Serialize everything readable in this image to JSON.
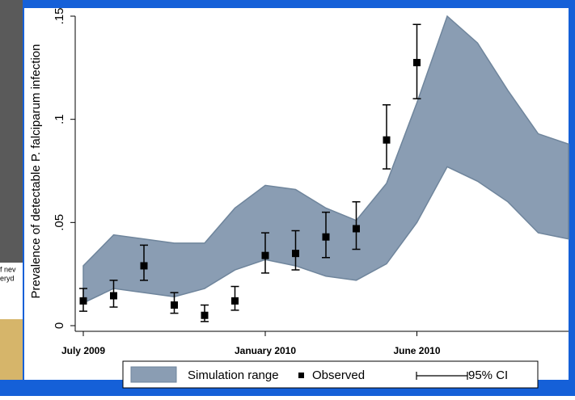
{
  "background_fragments": [
    "f nev",
    "eryd"
  ],
  "chart_data": {
    "type": "band_errorbar",
    "y_label": "Prevalence of detectable P. falciparum infection",
    "x": [
      "2009-07",
      "2009-08",
      "2009-09",
      "2009-10",
      "2009-11",
      "2009-12",
      "2010-01",
      "2010-02",
      "2010-03",
      "2010-04",
      "2010-05",
      "2010-06",
      "2010-07",
      "2010-08",
      "2010-09",
      "2010-10",
      "2010-11"
    ],
    "xticks": [
      {
        "value": "2009-07",
        "label": "July 2009"
      },
      {
        "value": "2010-01",
        "label": "January 2010"
      },
      {
        "value": "2010-06",
        "label": "June 2010"
      }
    ],
    "ylim": [
      0,
      0.15
    ],
    "yticks": [
      0,
      {
        "value": 0.05,
        "label": ".05"
      },
      {
        "value": 0.1,
        "label": ".1"
      },
      {
        "value": 0.15,
        "label": ".15"
      }
    ],
    "band": {
      "name": "Simulation range",
      "color": "#8a9db3",
      "lower": [
        0.011,
        0.018,
        0.016,
        0.014,
        0.018,
        0.027,
        0.032,
        0.029,
        0.024,
        0.022,
        0.03,
        0.05,
        0.077,
        0.07,
        0.06,
        0.045,
        0.042
      ],
      "upper": [
        0.029,
        0.044,
        0.042,
        0.04,
        0.04,
        0.057,
        0.068,
        0.066,
        0.057,
        0.051,
        0.069,
        0.108,
        0.15,
        0.137,
        0.114,
        0.093,
        0.088
      ]
    },
    "observed": {
      "name": "Observed",
      "color": "#000000",
      "values": [
        0.012,
        0.0145,
        0.029,
        0.01,
        0.005,
        0.012,
        0.034,
        0.035,
        0.043,
        0.047,
        0.09,
        0.1275,
        null,
        null,
        null,
        null,
        null
      ],
      "ci_low": [
        0.007,
        0.009,
        0.022,
        0.006,
        0.002,
        0.0075,
        0.0255,
        0.027,
        0.033,
        0.037,
        0.076,
        0.11,
        null,
        null,
        null,
        null,
        null
      ],
      "ci_high": [
        0.018,
        0.022,
        0.039,
        0.016,
        0.01,
        0.019,
        0.045,
        0.046,
        0.055,
        0.06,
        0.107,
        0.146,
        null,
        null,
        null,
        null,
        null
      ]
    },
    "ci_name": "95% CI"
  }
}
